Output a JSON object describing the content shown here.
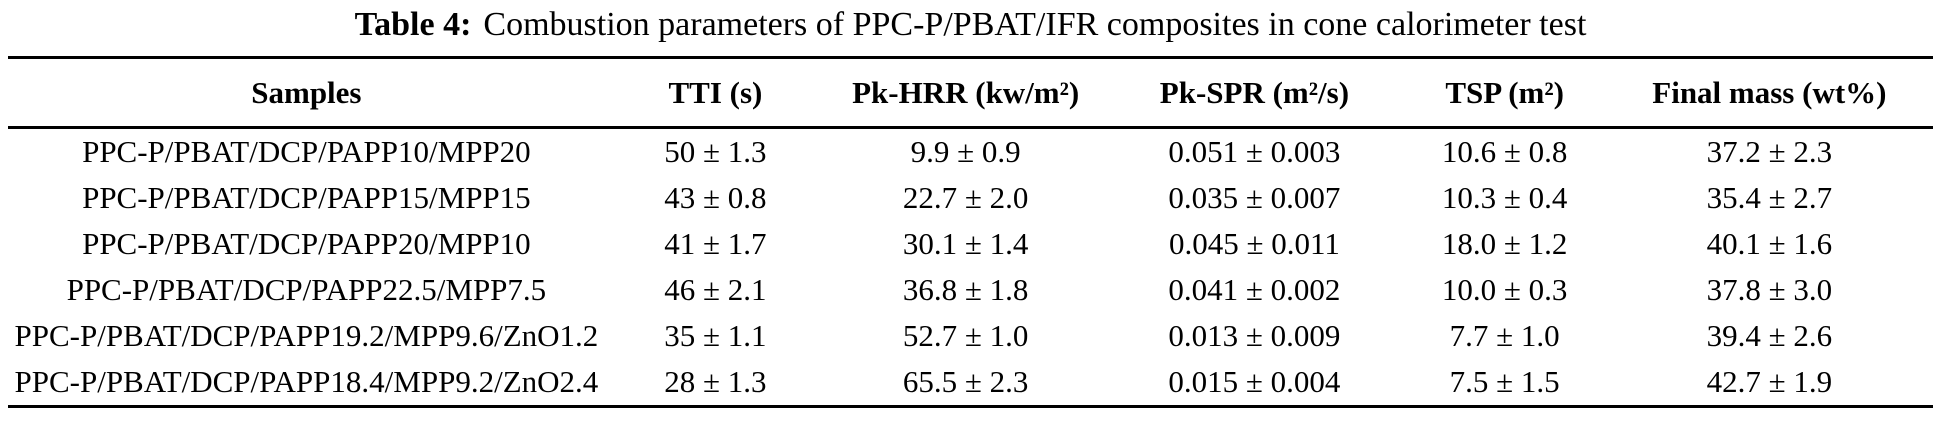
{
  "table": {
    "caption_label": "Table 4:",
    "caption_text": "Combustion parameters of PPC-P/PBAT/IFR composites in cone calorimeter test",
    "columns": {
      "samples": "Samples",
      "tti": "TTI (s)",
      "pk_hrr": "Pk-HRR (kw/m²)",
      "pk_spr": "Pk-SPR (m²/s)",
      "tsp": "TSP (m²)",
      "final_mass": "Final mass (wt%)"
    },
    "rows": [
      [
        "PPC-P/PBAT/DCP/PAPP10/MPP20",
        "50 ± 1.3",
        "9.9 ± 0.9",
        "0.051 ± 0.003",
        "10.6 ± 0.8",
        "37.2 ± 2.3"
      ],
      [
        "PPC-P/PBAT/DCP/PAPP15/MPP15",
        "43 ± 0.8",
        "22.7 ± 2.0",
        "0.035 ± 0.007",
        "10.3 ± 0.4",
        "35.4 ± 2.7"
      ],
      [
        "PPC-P/PBAT/DCP/PAPP20/MPP10",
        "41 ± 1.7",
        "30.1 ± 1.4",
        "0.045 ± 0.011",
        "18.0 ± 1.2",
        "40.1 ± 1.6"
      ],
      [
        "PPC-P/PBAT/DCP/PAPP22.5/MPP7.5",
        "46 ± 2.1",
        "36.8 ± 1.8",
        "0.041 ± 0.002",
        "10.0 ± 0.3",
        "37.8 ± 3.0"
      ],
      [
        "PPC-P/PBAT/DCP/PAPP19.2/MPP9.6/ZnO1.2",
        "35 ± 1.1",
        "52.7 ± 1.0",
        "0.013 ± 0.009",
        "7.7 ± 1.0",
        "39.4 ± 2.6"
      ],
      [
        "PPC-P/PBAT/DCP/PAPP18.4/MPP9.2/ZnO2.4",
        "28 ± 1.3",
        "65.5 ± 2.3",
        "0.015 ± 0.004",
        "7.5 ± 1.5",
        "42.7 ± 1.9"
      ]
    ],
    "colors": {
      "text": "#000000",
      "background": "#ffffff",
      "rule": "#000000"
    }
  }
}
